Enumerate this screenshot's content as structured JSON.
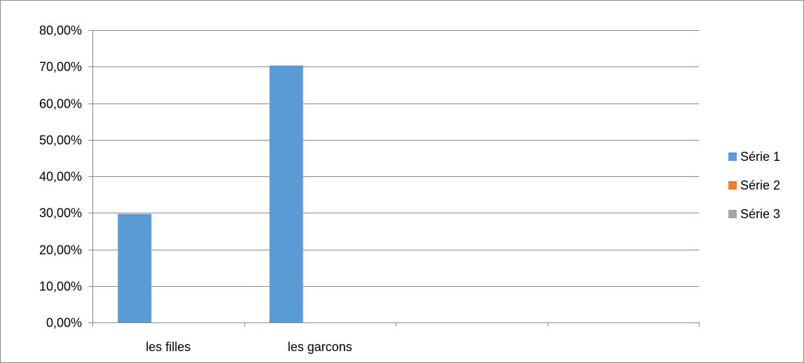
{
  "chart_data": {
    "type": "bar",
    "categories": [
      "les filles",
      "les garcons",
      "",
      ""
    ],
    "series": [
      {
        "name": "Série 1",
        "values": [
          29.7,
          70.3,
          null,
          null
        ],
        "color": "#5B9BD5"
      },
      {
        "name": "Série 2",
        "values": [
          null,
          null,
          null,
          null
        ],
        "color": "#ED7D31"
      },
      {
        "name": "Série 3",
        "values": [
          null,
          null,
          null,
          null
        ],
        "color": "#A5A5A5"
      }
    ],
    "ylim": [
      0,
      80
    ],
    "yticks": [
      0,
      10,
      20,
      30,
      40,
      50,
      60,
      70,
      80
    ],
    "ytick_labels": [
      "0,00%",
      "10,00%",
      "20,00%",
      "30,00%",
      "40,00%",
      "50,00%",
      "60,00%",
      "70,00%",
      "80,00%"
    ],
    "grid": true,
    "legend_position": "right",
    "gridline_color": "#898989",
    "title": "",
    "xlabel": "",
    "ylabel": ""
  }
}
